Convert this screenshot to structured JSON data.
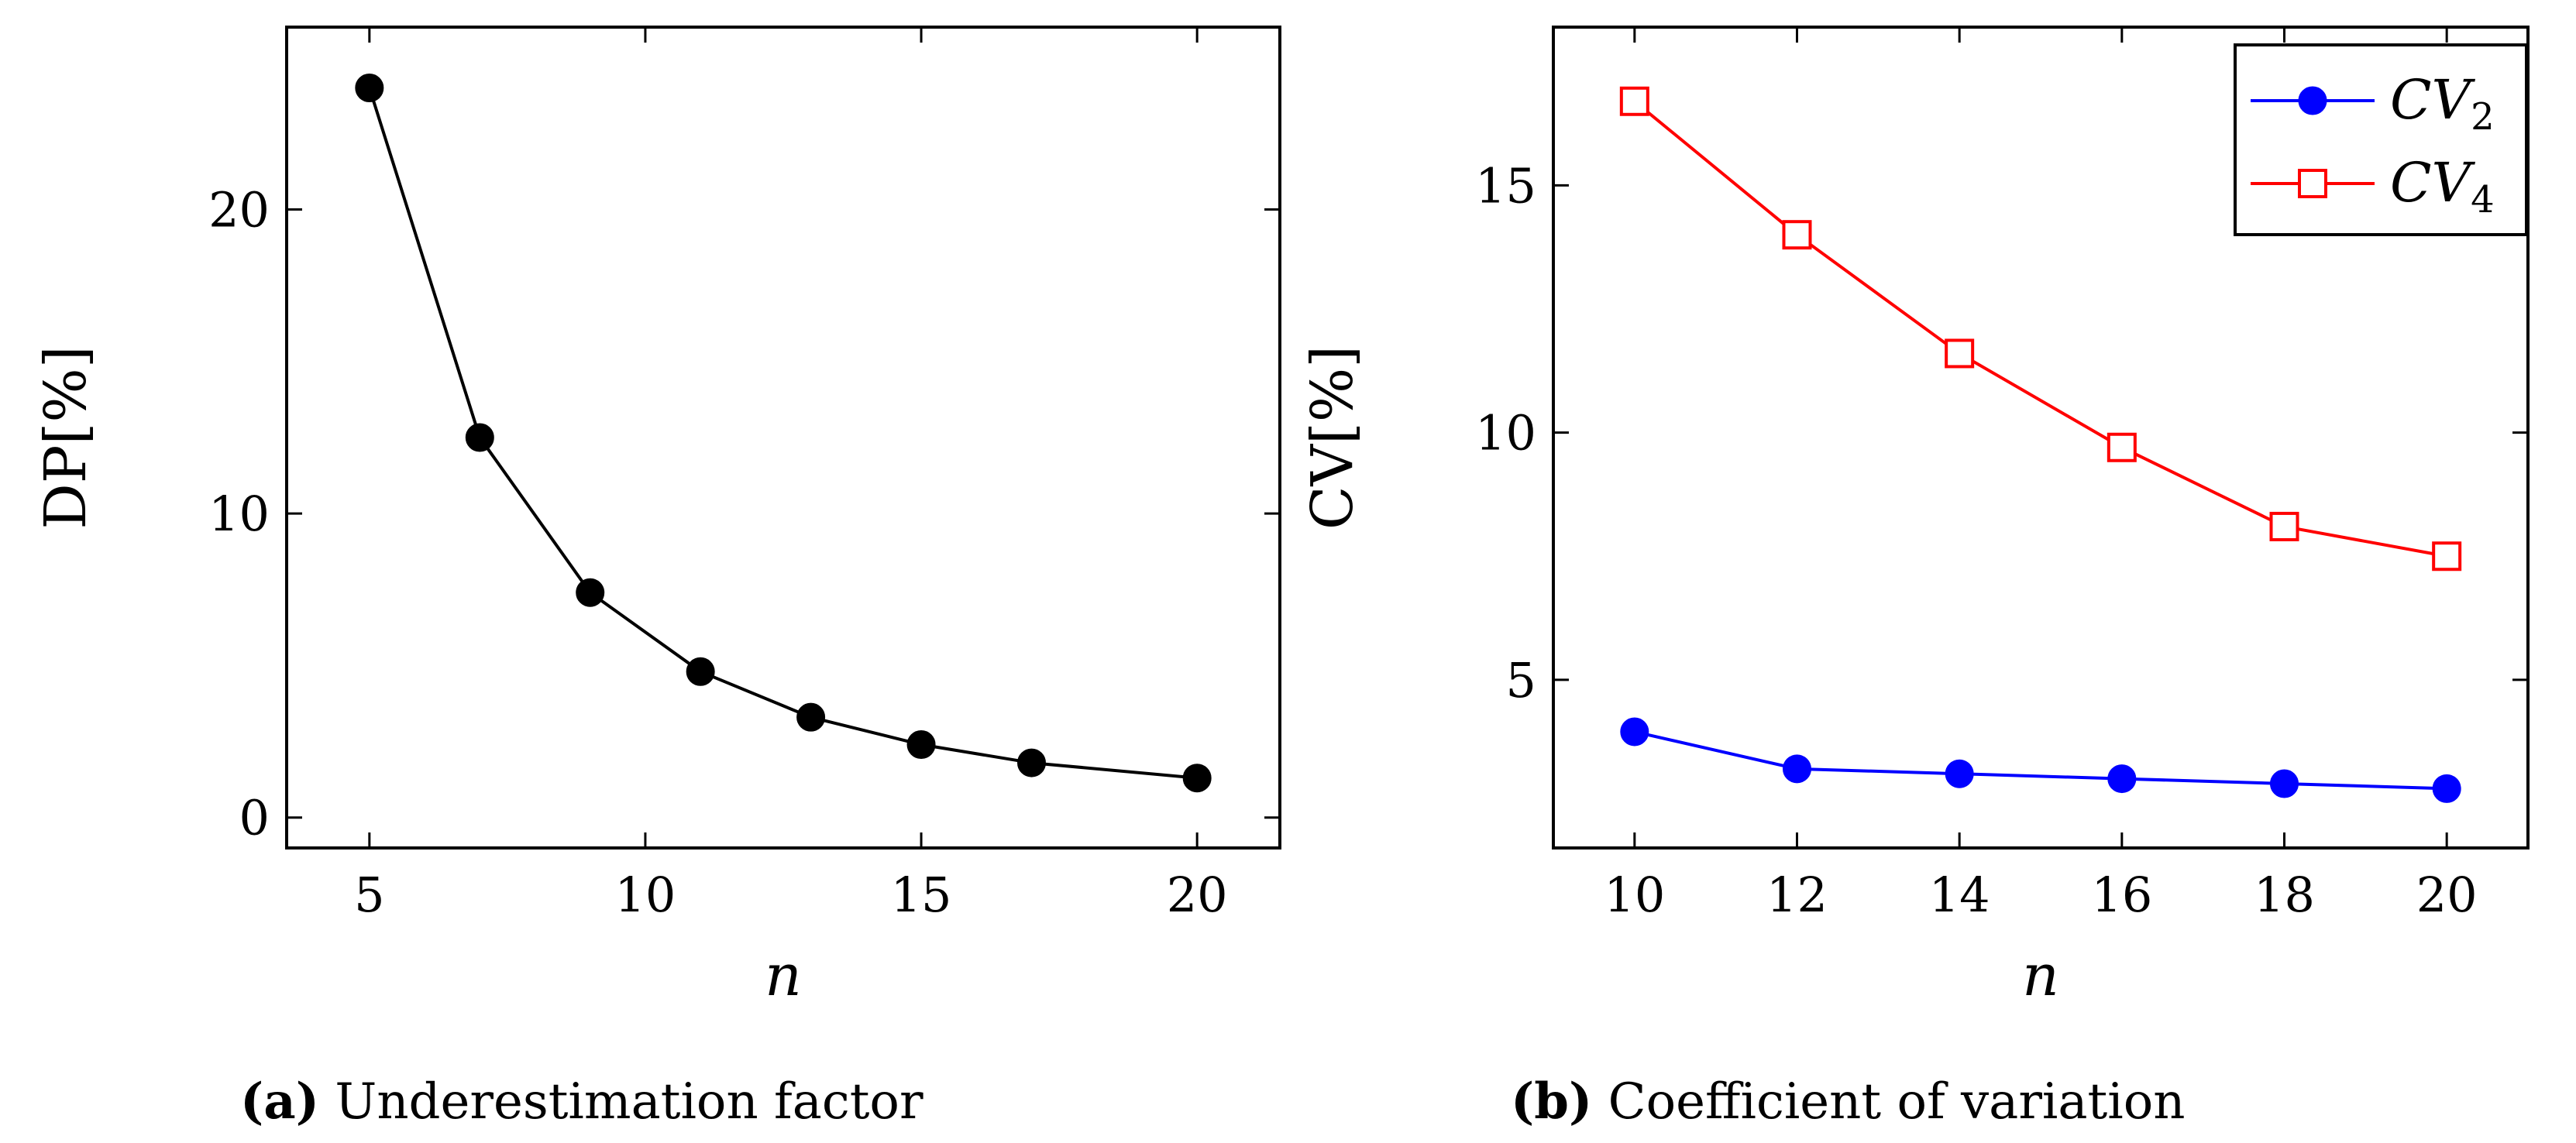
{
  "chart_data": [
    {
      "type": "line",
      "panel_label": "(a)",
      "caption": "Underestimation factor",
      "xlabel": "n",
      "ylabel": "DP[%]",
      "xlim": [
        3.5,
        21.5
      ],
      "ylim": [
        -1,
        26
      ],
      "xticks": [
        5,
        10,
        15,
        20
      ],
      "yticks": [
        0,
        10,
        20
      ],
      "series": [
        {
          "name": "DP",
          "color": "#000000",
          "marker": "circle",
          "x": [
            5,
            7,
            9,
            11,
            13,
            15,
            17,
            20
          ],
          "values": [
            24.0,
            12.5,
            7.4,
            4.8,
            3.3,
            2.4,
            1.8,
            1.3
          ]
        }
      ]
    },
    {
      "type": "line",
      "panel_label": "(b)",
      "caption": "Coefficient of variation",
      "xlabel": "n",
      "ylabel": "CV[%]",
      "xlim": [
        9.0,
        21.0
      ],
      "ylim": [
        1.6,
        18.2
      ],
      "xticks": [
        10,
        12,
        14,
        16,
        18,
        20
      ],
      "yticks": [
        5,
        10,
        15
      ],
      "legend_position": "top-right",
      "series": [
        {
          "name": "CV",
          "subscript": "2",
          "color": "#0000ff",
          "marker": "circle",
          "x": [
            10,
            12,
            14,
            16,
            18,
            20
          ],
          "values": [
            3.95,
            3.2,
            3.1,
            3.0,
            2.9,
            2.8
          ]
        },
        {
          "name": "CV",
          "subscript": "4",
          "color": "#ff0000",
          "marker": "square-open",
          "x": [
            10,
            12,
            14,
            16,
            18,
            20
          ],
          "values": [
            16.7,
            14.0,
            11.6,
            9.7,
            8.1,
            7.5
          ]
        }
      ]
    }
  ]
}
